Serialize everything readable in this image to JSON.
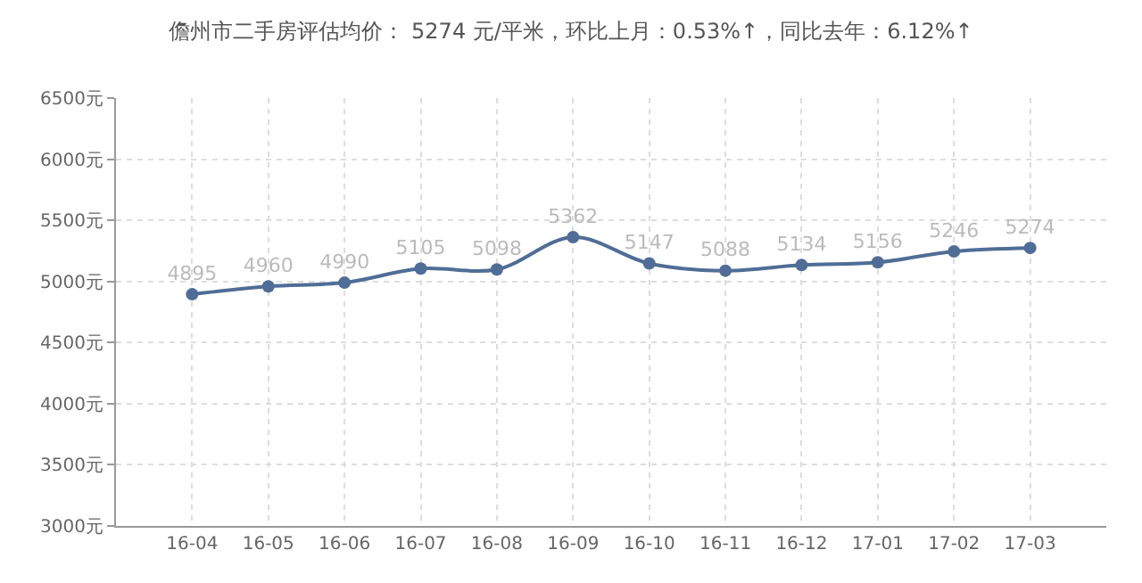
{
  "chart_data": {
    "type": "line",
    "title": "儋州市二手房评估均价： 5274 元/平米，环比上月：0.53%↑，同比去年：6.12%↑",
    "categories": [
      "16-04",
      "16-05",
      "16-06",
      "16-07",
      "16-08",
      "16-09",
      "16-10",
      "16-11",
      "16-12",
      "17-01",
      "17-02",
      "17-03"
    ],
    "series": [
      {
        "color": "#4f6d96",
        "values": [
          4895,
          4960,
          4990,
          5105,
          5098,
          5362,
          5147,
          5088,
          5134,
          5156,
          5246,
          5274
        ]
      }
    ],
    "ylim": [
      3000,
      6500
    ],
    "yticks": [
      {
        "value": 3000,
        "label": "3000元"
      },
      {
        "value": 3500,
        "label": "3500元"
      },
      {
        "value": 4000,
        "label": "4000元"
      },
      {
        "value": 4500,
        "label": "4500元"
      },
      {
        "value": 5000,
        "label": "5000元"
      },
      {
        "value": 5500,
        "label": "5500元"
      },
      {
        "value": 6000,
        "label": "6000元"
      },
      {
        "value": 6500,
        "label": "6500元"
      }
    ],
    "grid": true,
    "marker": "circle",
    "line_style": "solid",
    "data_labels": true,
    "legend": false
  }
}
